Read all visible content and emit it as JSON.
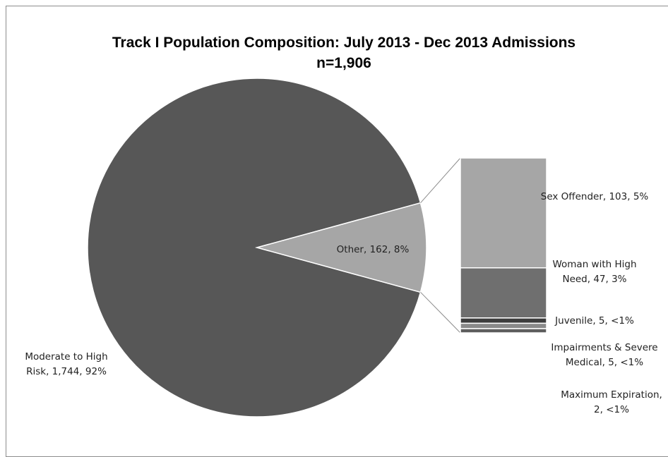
{
  "chart_data": {
    "type": "bar-of-pie",
    "title": "Track I Population Composition: July 2013 - Dec 2013 Admissions",
    "subtitle": "n=1,906",
    "pie": [
      {
        "name": "Moderate to High Risk",
        "value": 1744,
        "percent": "92%",
        "label_lines": [
          "Moderate to High",
          "Risk, 1,744, 92%"
        ],
        "color": "#575757"
      },
      {
        "name": "Other",
        "value": 162,
        "percent": "8%",
        "label_lines": [
          "Other, 162, 8%"
        ],
        "color": "#a6a6a6"
      }
    ],
    "bar": [
      {
        "name": "Sex Offender",
        "value": 103,
        "percent": "5%",
        "label_lines": [
          "Sex Offender, 103, 5%"
        ],
        "color": "#a6a6a6"
      },
      {
        "name": "Woman with High Need",
        "value": 47,
        "percent": "3%",
        "label_lines": [
          "Woman with High",
          "Need, 47, 3%"
        ],
        "color": "#6f6f6f"
      },
      {
        "name": "Juvenile",
        "value": 5,
        "percent": "<1%",
        "label_lines": [
          "Juvenile, 5, <1%"
        ],
        "color": "#3d3d3d"
      },
      {
        "name": "Impairments & Severe Medical",
        "value": 5,
        "percent": "<1%",
        "label_lines": [
          "Impairments & Severe",
          "Medical, 5, <1%"
        ],
        "color": "#8a8a8a"
      },
      {
        "name": "Maximum Expiration",
        "value": 2,
        "percent": "<1%",
        "label_lines": [
          "Maximum Expiration,",
          "2, <1%"
        ],
        "color": "#5e5e5e"
      }
    ],
    "colors": {
      "leader": "#8c8c8c",
      "segment_border": "#ffffff"
    }
  }
}
